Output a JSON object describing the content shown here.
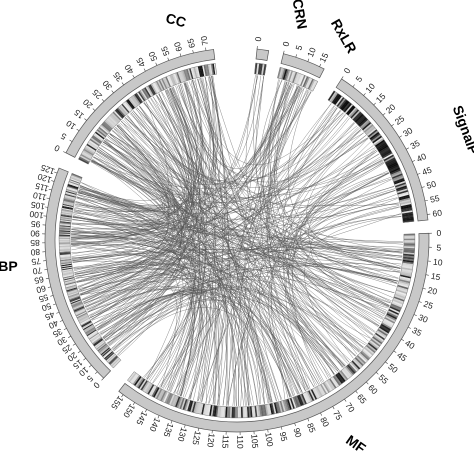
{
  "diagram": {
    "type": "circos",
    "segments": [
      {
        "name": "CC",
        "label": "CC",
        "length": 73,
        "tick_step": 5,
        "pattern": "mixed"
      },
      {
        "name": "CRN",
        "label": "CRN",
        "length": 4,
        "tick_step": 5,
        "pattern": "sparse"
      },
      {
        "name": "RxLR",
        "label": "RxLR",
        "length": 17,
        "tick_step": 5,
        "pattern": "mixed"
      },
      {
        "name": "SignalP",
        "label": "SignalP",
        "length": 62,
        "tick_step": 5,
        "pattern": "dense"
      },
      {
        "name": "MF",
        "label": "MF",
        "length": 157,
        "tick_step": 5,
        "pattern": "mixed"
      },
      {
        "name": "BP",
        "label": "BP",
        "length": 128,
        "tick_step": 5,
        "pattern": "mixed"
      }
    ],
    "colors": {
      "outer_band": "#c8c8c8",
      "outer_stroke": "#555555",
      "link": "#555555",
      "heat_low": "#e6e6e6",
      "heat_high": "#000000"
    },
    "link_count": 420
  }
}
